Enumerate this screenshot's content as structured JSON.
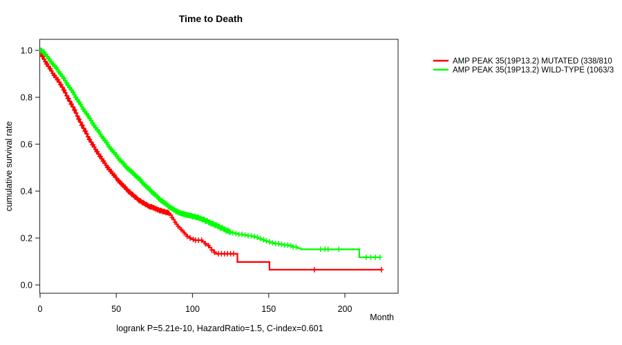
{
  "chart_data": {
    "type": "line",
    "subtype": "kaplan-meier-survival",
    "title": "Time to Death",
    "xlabel": "Month",
    "ylabel": "cumulative survival rate",
    "footer": "logrank P=5.21e-10, HazardRatio=1.5, C-index=0.601",
    "xlim": [
      0,
      235
    ],
    "ylim": [
      0,
      1.0
    ],
    "grid": false,
    "legend_position": "right-outside",
    "x_ticks": [
      {
        "v": 0,
        "label": "0"
      },
      {
        "v": 50,
        "label": "50"
      },
      {
        "v": 100,
        "label": "100"
      },
      {
        "v": 150,
        "label": "150"
      },
      {
        "v": 200,
        "label": "200"
      }
    ],
    "y_ticks": [
      {
        "v": 1.0,
        "label": "1.0"
      },
      {
        "v": 0.8,
        "label": "0.8"
      },
      {
        "v": 0.6,
        "label": "0.6"
      },
      {
        "v": 0.4,
        "label": "0.4"
      },
      {
        "v": 0.2,
        "label": "0.2"
      },
      {
        "v": 0.0,
        "label": "0.0"
      }
    ],
    "series": [
      {
        "name": "AMP PEAK 35(19P13.2) MUTATED (338/810",
        "color": "#ff0000",
        "end_month": 224,
        "steps": [
          [
            0,
            1.0
          ],
          [
            0.7,
            0.975
          ],
          [
            2,
            0.962
          ],
          [
            3,
            0.952
          ],
          [
            4,
            0.942
          ],
          [
            5,
            0.932
          ],
          [
            6,
            0.922
          ],
          [
            7,
            0.912
          ],
          [
            8,
            0.902
          ],
          [
            9,
            0.893
          ],
          [
            10,
            0.884
          ],
          [
            11,
            0.875
          ],
          [
            12,
            0.865
          ],
          [
            13,
            0.854
          ],
          [
            14,
            0.843
          ],
          [
            15,
            0.831
          ],
          [
            16,
            0.819
          ],
          [
            17,
            0.807
          ],
          [
            18,
            0.795
          ],
          [
            19,
            0.783
          ],
          [
            20,
            0.771
          ],
          [
            21,
            0.759
          ],
          [
            22,
            0.746
          ],
          [
            23,
            0.733
          ],
          [
            24,
            0.72
          ],
          [
            25,
            0.707
          ],
          [
            26,
            0.694
          ],
          [
            27,
            0.681
          ],
          [
            28,
            0.668
          ],
          [
            29,
            0.656
          ],
          [
            30,
            0.644
          ],
          [
            31,
            0.632
          ],
          [
            32,
            0.62
          ],
          [
            33,
            0.609
          ],
          [
            34,
            0.598
          ],
          [
            35,
            0.588
          ],
          [
            36,
            0.578
          ],
          [
            37,
            0.568
          ],
          [
            38,
            0.558
          ],
          [
            39,
            0.548
          ],
          [
            40,
            0.538
          ],
          [
            41,
            0.528
          ],
          [
            42,
            0.519
          ],
          [
            43,
            0.51
          ],
          [
            44,
            0.501
          ],
          [
            45,
            0.492
          ],
          [
            46,
            0.484
          ],
          [
            47,
            0.476
          ],
          [
            48,
            0.468
          ],
          [
            49,
            0.46
          ],
          [
            50,
            0.452
          ],
          [
            51,
            0.445
          ],
          [
            52,
            0.438
          ],
          [
            53,
            0.431
          ],
          [
            54,
            0.424
          ],
          [
            55,
            0.417
          ],
          [
            56,
            0.41
          ],
          [
            57,
            0.404
          ],
          [
            58,
            0.398
          ],
          [
            59,
            0.392
          ],
          [
            60,
            0.386
          ],
          [
            61,
            0.38
          ],
          [
            62,
            0.374
          ],
          [
            63,
            0.369
          ],
          [
            64,
            0.364
          ],
          [
            65,
            0.359
          ],
          [
            66,
            0.355
          ],
          [
            67,
            0.351
          ],
          [
            68,
            0.347
          ],
          [
            69,
            0.343
          ],
          [
            70,
            0.339
          ],
          [
            71,
            0.336
          ],
          [
            72,
            0.333
          ],
          [
            73.5,
            0.329
          ],
          [
            75,
            0.325
          ],
          [
            76.5,
            0.321
          ],
          [
            78,
            0.317
          ],
          [
            80,
            0.313
          ],
          [
            82,
            0.309
          ],
          [
            84,
            0.305
          ],
          [
            85.5,
            0.298
          ],
          [
            86.5,
            0.288
          ],
          [
            87.5,
            0.278
          ],
          [
            88.5,
            0.268
          ],
          [
            89.5,
            0.258
          ],
          [
            90.5,
            0.25
          ],
          [
            91.5,
            0.243
          ],
          [
            92.5,
            0.236
          ],
          [
            93.5,
            0.229
          ],
          [
            94.5,
            0.222
          ],
          [
            95.5,
            0.214
          ],
          [
            96.5,
            0.207
          ],
          [
            98,
            0.2
          ],
          [
            99.5,
            0.194
          ],
          [
            101,
            0.191
          ],
          [
            106.5,
            0.184
          ],
          [
            108,
            0.176
          ],
          [
            109.5,
            0.168
          ],
          [
            111,
            0.159
          ],
          [
            112.5,
            0.149
          ],
          [
            114,
            0.139
          ],
          [
            115.5,
            0.133
          ],
          [
            129.5,
            0.098
          ],
          [
            150.5,
            0.065
          ]
        ],
        "censor_ranges": [
          {
            "from": 0.6,
            "to": 85,
            "step": 0.7
          }
        ],
        "censor_extra": [
          86.5,
          88.5,
          90.5,
          92.5,
          94.5,
          96.5,
          98.5,
          100.5,
          102,
          104,
          106,
          108.5,
          110.5,
          112.5,
          114.5,
          117,
          119,
          121,
          123,
          125,
          127,
          180,
          224
        ]
      },
      {
        "name": "AMP PEAK 35(19P13.2) WILD-TYPE (1063/3",
        "color": "#00ff00",
        "end_month": 223.5,
        "steps": [
          [
            0,
            1.0
          ],
          [
            1.5,
            0.993
          ],
          [
            3,
            0.983
          ],
          [
            4,
            0.974
          ],
          [
            5,
            0.965
          ],
          [
            6,
            0.957
          ],
          [
            7,
            0.949
          ],
          [
            8,
            0.941
          ],
          [
            9,
            0.933
          ],
          [
            10,
            0.925
          ],
          [
            11,
            0.917
          ],
          [
            12,
            0.908
          ],
          [
            13,
            0.899
          ],
          [
            14,
            0.89
          ],
          [
            15,
            0.881
          ],
          [
            16,
            0.871
          ],
          [
            17,
            0.861
          ],
          [
            18,
            0.851
          ],
          [
            19,
            0.841
          ],
          [
            20,
            0.831
          ],
          [
            21,
            0.821
          ],
          [
            22,
            0.811
          ],
          [
            23,
            0.8
          ],
          [
            24,
            0.79
          ],
          [
            25,
            0.78
          ],
          [
            26,
            0.77
          ],
          [
            27,
            0.76
          ],
          [
            28,
            0.75
          ],
          [
            29,
            0.74
          ],
          [
            30,
            0.73
          ],
          [
            31,
            0.72
          ],
          [
            32,
            0.71
          ],
          [
            33,
            0.7
          ],
          [
            34,
            0.69
          ],
          [
            35,
            0.68
          ],
          [
            36,
            0.67
          ],
          [
            37,
            0.661
          ],
          [
            38,
            0.652
          ],
          [
            39,
            0.643
          ],
          [
            40,
            0.634
          ],
          [
            41,
            0.625
          ],
          [
            42,
            0.616
          ],
          [
            43,
            0.607
          ],
          [
            44,
            0.598
          ],
          [
            45,
            0.589
          ],
          [
            46,
            0.58
          ],
          [
            47,
            0.572
          ],
          [
            48,
            0.564
          ],
          [
            49,
            0.556
          ],
          [
            50,
            0.548
          ],
          [
            51,
            0.54
          ],
          [
            52,
            0.532
          ],
          [
            53,
            0.525
          ],
          [
            54,
            0.518
          ],
          [
            55,
            0.511
          ],
          [
            56,
            0.504
          ],
          [
            57,
            0.497
          ],
          [
            58,
            0.491
          ],
          [
            59,
            0.485
          ],
          [
            60,
            0.479
          ],
          [
            61,
            0.473
          ],
          [
            62,
            0.467
          ],
          [
            63,
            0.461
          ],
          [
            64,
            0.455
          ],
          [
            65,
            0.449
          ],
          [
            66,
            0.442
          ],
          [
            67,
            0.435
          ],
          [
            68,
            0.428
          ],
          [
            69,
            0.421
          ],
          [
            70,
            0.414
          ],
          [
            71,
            0.408
          ],
          [
            72,
            0.402
          ],
          [
            73,
            0.396
          ],
          [
            74,
            0.39
          ],
          [
            75,
            0.384
          ],
          [
            76,
            0.378
          ],
          [
            77,
            0.372
          ],
          [
            78,
            0.366
          ],
          [
            79,
            0.36
          ],
          [
            80,
            0.355
          ],
          [
            81,
            0.35
          ],
          [
            82,
            0.345
          ],
          [
            83,
            0.34
          ],
          [
            84,
            0.335
          ],
          [
            85,
            0.33
          ],
          [
            86,
            0.326
          ],
          [
            87,
            0.322
          ],
          [
            88,
            0.318
          ],
          [
            89,
            0.314
          ],
          [
            90,
            0.311
          ],
          [
            91,
            0.308
          ],
          [
            92,
            0.305
          ],
          [
            93,
            0.303
          ],
          [
            94,
            0.301
          ],
          [
            96,
            0.298
          ],
          [
            98,
            0.295
          ],
          [
            100,
            0.292
          ],
          [
            102,
            0.288
          ],
          [
            104,
            0.284
          ],
          [
            106,
            0.279
          ],
          [
            108,
            0.273
          ],
          [
            110,
            0.267
          ],
          [
            112,
            0.261
          ],
          [
            114,
            0.255
          ],
          [
            116,
            0.249
          ],
          [
            118,
            0.243
          ],
          [
            120,
            0.237
          ],
          [
            122,
            0.231
          ],
          [
            124,
            0.226
          ],
          [
            126,
            0.222
          ],
          [
            128,
            0.219
          ],
          [
            130,
            0.216
          ],
          [
            133,
            0.213
          ],
          [
            136,
            0.21
          ],
          [
            139,
            0.207
          ],
          [
            141,
            0.203
          ],
          [
            143,
            0.198
          ],
          [
            145,
            0.193
          ],
          [
            147,
            0.188
          ],
          [
            149,
            0.184
          ],
          [
            151,
            0.18
          ],
          [
            154,
            0.176
          ],
          [
            157,
            0.173
          ],
          [
            160,
            0.17
          ],
          [
            163,
            0.167
          ],
          [
            166,
            0.162
          ],
          [
            169,
            0.157
          ],
          [
            171,
            0.152
          ],
          [
            209.5,
            0.118
          ]
        ],
        "censor_ranges": [
          {
            "from": 0.5,
            "to": 125,
            "step": 0.55
          }
        ],
        "censor_extra": [
          126.5,
          128.5,
          130.5,
          132.5,
          134.5,
          136.5,
          138.5,
          140.5,
          142.5,
          144.5,
          146.5,
          148.5,
          150.5,
          152.5,
          154.5,
          156.5,
          158.5,
          160.5,
          162.5,
          164.5,
          166,
          168,
          184,
          187,
          189,
          196,
          214,
          217,
          220,
          223
        ]
      }
    ]
  }
}
